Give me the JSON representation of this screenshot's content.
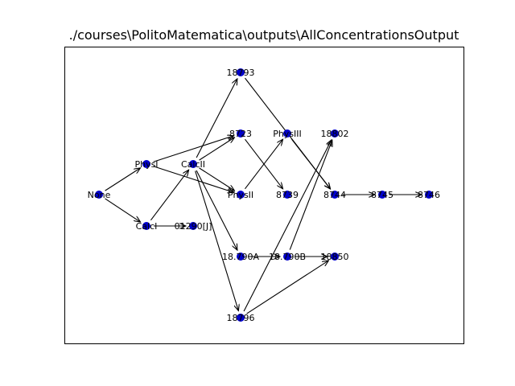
{
  "title": "./courses\\PolitoMatematica\\outputs\\AllConcentrationsOutput",
  "colors": {
    "node": "#0000cc",
    "edge": "#000000",
    "frame": "#000000"
  },
  "nodes": [
    {
      "id": "none",
      "label": "None"
    },
    {
      "id": "physi",
      "label": "PhysI"
    },
    {
      "id": "calci",
      "label": "CalcI"
    },
    {
      "id": "calcii",
      "label": "CalcII"
    },
    {
      "id": "01290",
      "label": "01290[J]"
    },
    {
      "id": "18793",
      "label": "18793"
    },
    {
      "id": "8723",
      "label": "8723"
    },
    {
      "id": "physii",
      "label": "PhysII"
    },
    {
      "id": "18790a",
      "label": "18.790A"
    },
    {
      "id": "18796",
      "label": "18796"
    },
    {
      "id": "physiii",
      "label": "PhysIII"
    },
    {
      "id": "8739",
      "label": "8739"
    },
    {
      "id": "18790b",
      "label": "18.790B"
    },
    {
      "id": "18802",
      "label": "18802"
    },
    {
      "id": "8744",
      "label": "8744"
    },
    {
      "id": "18850",
      "label": "18850"
    },
    {
      "id": "8745",
      "label": "8745"
    },
    {
      "id": "8746",
      "label": "8746"
    }
  ],
  "edges": [
    [
      "none",
      "physi"
    ],
    [
      "none",
      "calci"
    ],
    [
      "physi",
      "8723"
    ],
    [
      "physi",
      "physii"
    ],
    [
      "calci",
      "calcii"
    ],
    [
      "calci",
      "01290"
    ],
    [
      "calcii",
      "18793"
    ],
    [
      "calcii",
      "8723"
    ],
    [
      "calcii",
      "physii"
    ],
    [
      "calcii",
      "18790a"
    ],
    [
      "calcii",
      "18796"
    ],
    [
      "18793",
      "8744"
    ],
    [
      "8723",
      "8739"
    ],
    [
      "physii",
      "physiii"
    ],
    [
      "physiii",
      "8744"
    ],
    [
      "18796",
      "18802"
    ],
    [
      "18796",
      "18850"
    ],
    [
      "18790a",
      "18790b"
    ],
    [
      "18790b",
      "18802"
    ],
    [
      "18790b",
      "18850"
    ],
    [
      "8744",
      "8745"
    ],
    [
      "8745",
      "8746"
    ]
  ]
}
